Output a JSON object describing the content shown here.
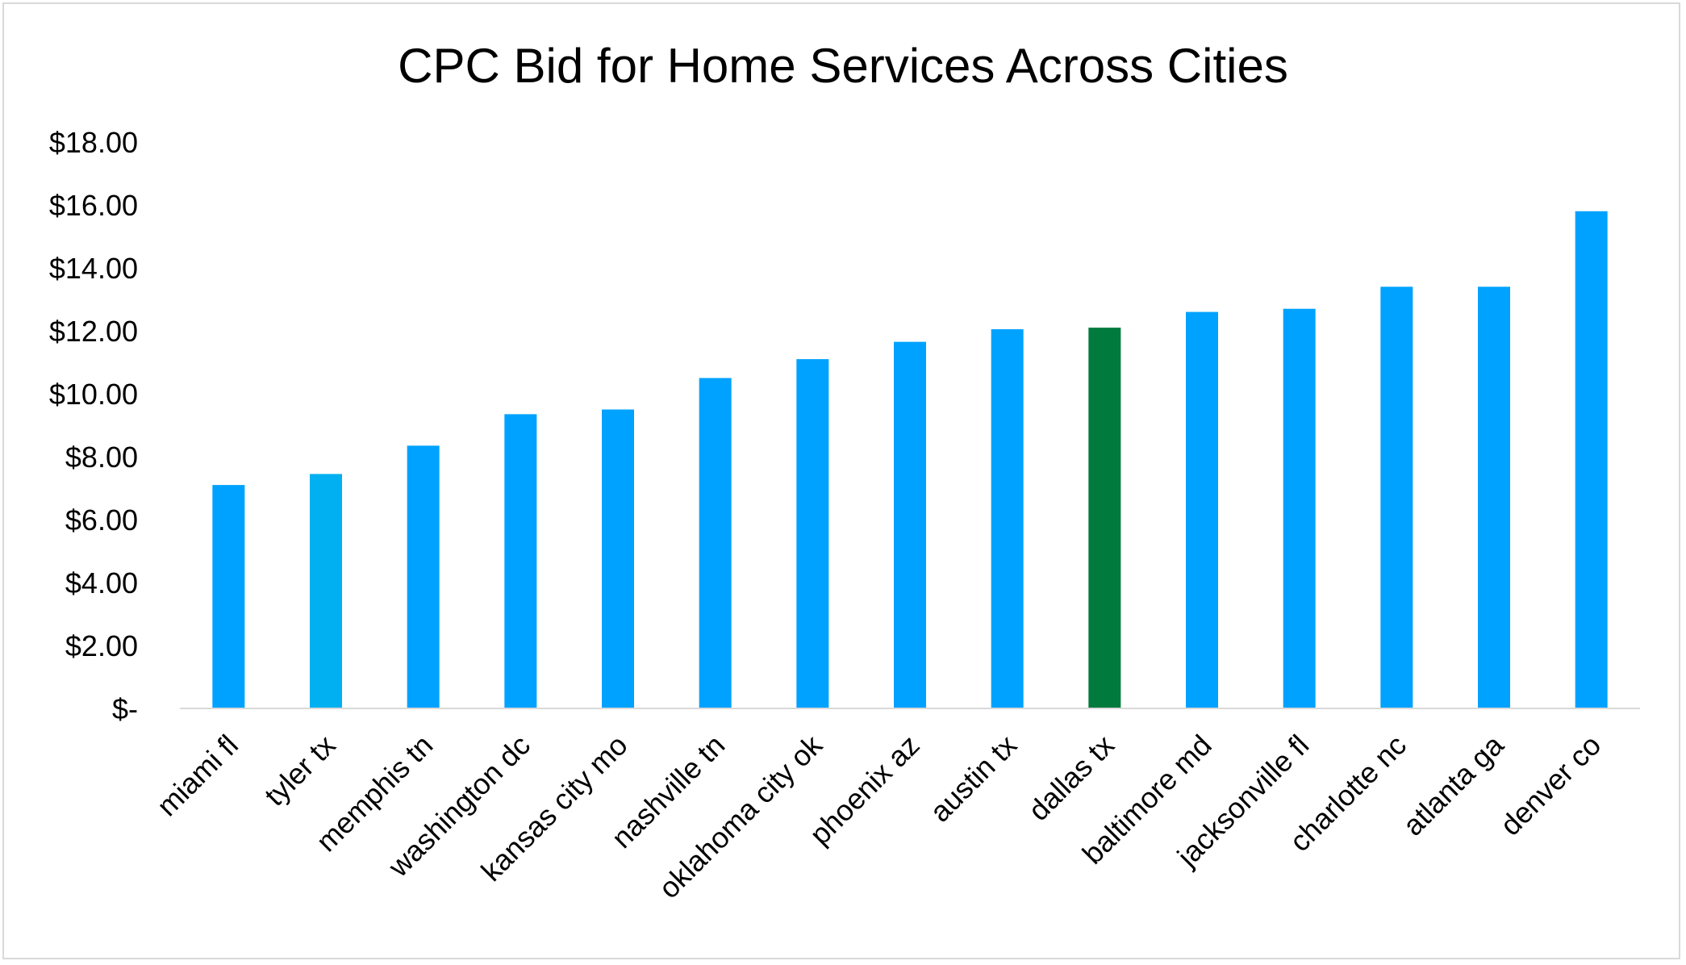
{
  "chart_data": {
    "type": "bar",
    "title": "CPC Bid for Home Services Across Cities",
    "xlabel": "",
    "ylabel": "",
    "ylim": [
      0,
      18
    ],
    "yticks": [
      {
        "value": 0,
        "label": "$-"
      },
      {
        "value": 2,
        "label": "$2.00"
      },
      {
        "value": 4,
        "label": "$4.00"
      },
      {
        "value": 6,
        "label": "$6.00"
      },
      {
        "value": 8,
        "label": "$8.00"
      },
      {
        "value": 10,
        "label": "$10.00"
      },
      {
        "value": 12,
        "label": "$12.00"
      },
      {
        "value": 14,
        "label": "$14.00"
      },
      {
        "value": 16,
        "label": "$16.00"
      },
      {
        "value": 18,
        "label": "$18.00"
      }
    ],
    "grid": false,
    "legend": "none",
    "categories": [
      "miami fl",
      "tyler tx",
      "memphis tn",
      "washington dc",
      "kansas city mo",
      "nashville tn",
      "oklahoma city ok",
      "phoenix az",
      "austin tx",
      "dallas tx",
      "baltimore md",
      "jacksonville fl",
      "charlotte nc",
      "atlanta ga",
      "denver co"
    ],
    "values": [
      7.1,
      7.45,
      8.35,
      9.35,
      9.5,
      10.5,
      11.1,
      11.65,
      12.05,
      12.1,
      12.6,
      12.7,
      13.4,
      13.4,
      15.8
    ],
    "bar_colors": [
      "#00a2ff",
      "#00b0f0",
      "#00a2ff",
      "#00a2ff",
      "#00a2ff",
      "#00a2ff",
      "#00a2ff",
      "#00a2ff",
      "#00a2ff",
      "#007a3d",
      "#00a2ff",
      "#00a2ff",
      "#00a2ff",
      "#00a2ff",
      "#00a2ff"
    ],
    "axis_color": "#d9d9d9"
  }
}
